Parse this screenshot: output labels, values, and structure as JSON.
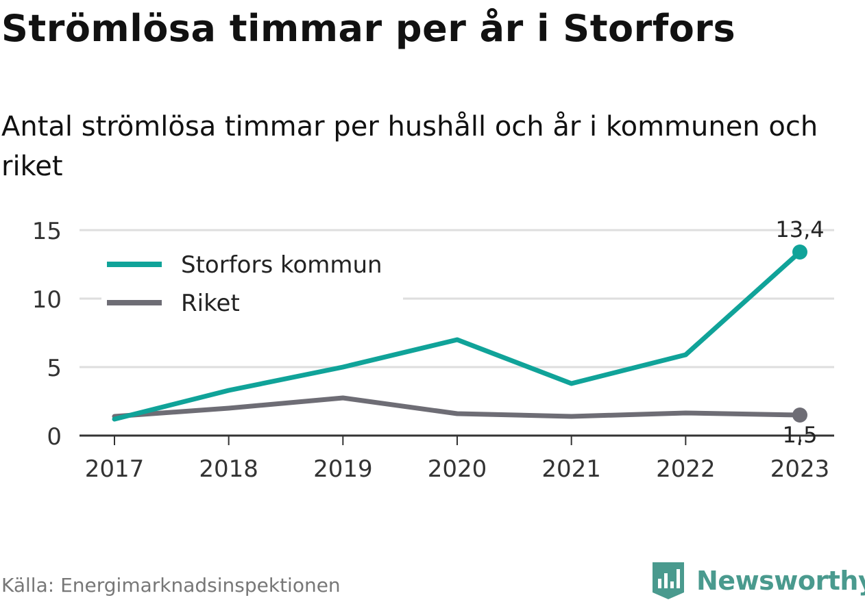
{
  "title": "Strömlösa timmar per år i Storfors",
  "subtitle": "Antal strömlösa timmar per hushåll och år i kommunen och riket",
  "source": "Källa: Energimarknadsinspektionen",
  "logo_text": "Newsworthy",
  "chart_data": {
    "type": "line",
    "x": [
      "2017",
      "2018",
      "2019",
      "2020",
      "2021",
      "2022",
      "2023"
    ],
    "ylim": [
      0,
      15
    ],
    "yticks": [
      "0",
      "5",
      "10",
      "15"
    ],
    "grid": true,
    "legend_position": "top-left",
    "series": [
      {
        "name": "Storfors kommun",
        "color": "#10a399",
        "values": [
          1.2,
          3.3,
          5.0,
          7.0,
          3.8,
          5.9,
          13.4
        ],
        "end_label": "13,4"
      },
      {
        "name": "Riket",
        "color": "#6e6d75",
        "values": [
          1.4,
          2.0,
          2.75,
          1.6,
          1.4,
          1.65,
          1.5
        ],
        "end_label": "1,5"
      }
    ]
  }
}
